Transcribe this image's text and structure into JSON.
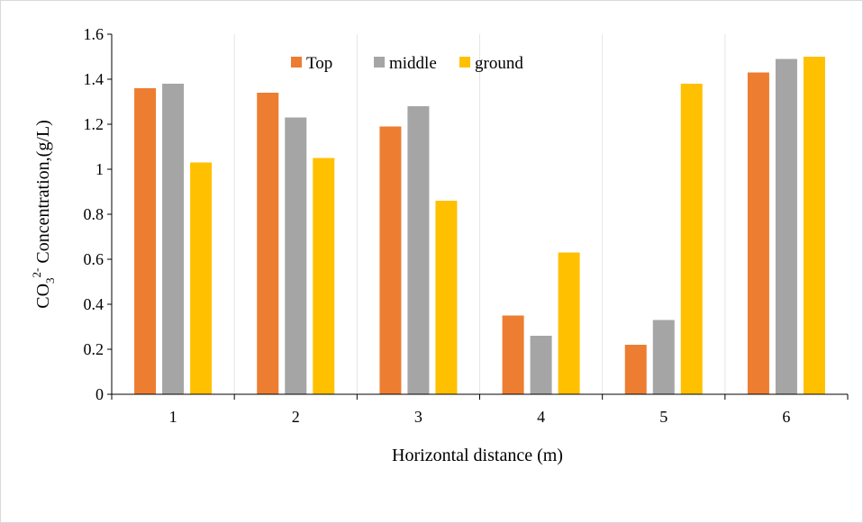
{
  "chart_data": {
    "type": "bar",
    "categories": [
      "1",
      "2",
      "3",
      "4",
      "5",
      "6"
    ],
    "series": [
      {
        "name": "Top",
        "color": "#ED7D31",
        "values": [
          1.36,
          1.34,
          1.19,
          0.35,
          0.22,
          1.43
        ]
      },
      {
        "name": "middle",
        "color": "#A5A5A5",
        "values": [
          1.38,
          1.23,
          1.28,
          0.26,
          0.33,
          1.49
        ]
      },
      {
        "name": "ground",
        "color": "#FFC000",
        "values": [
          1.03,
          1.05,
          0.86,
          0.63,
          1.38,
          1.5
        ]
      }
    ],
    "xlabel": "Horizontal distance (m)",
    "ylabel": {
      "prefix": "CO",
      "sub": "3",
      "sup": "2-",
      "suffix": " Concentration,(g/L)"
    },
    "ylim": [
      0,
      1.6
    ],
    "yticks": [
      "0",
      "0.2",
      "0.4",
      "0.6",
      "0.8",
      "1",
      "1.2",
      "1.4",
      "1.6"
    ],
    "grid": "vertical category separators",
    "legend_position": "top-center"
  }
}
